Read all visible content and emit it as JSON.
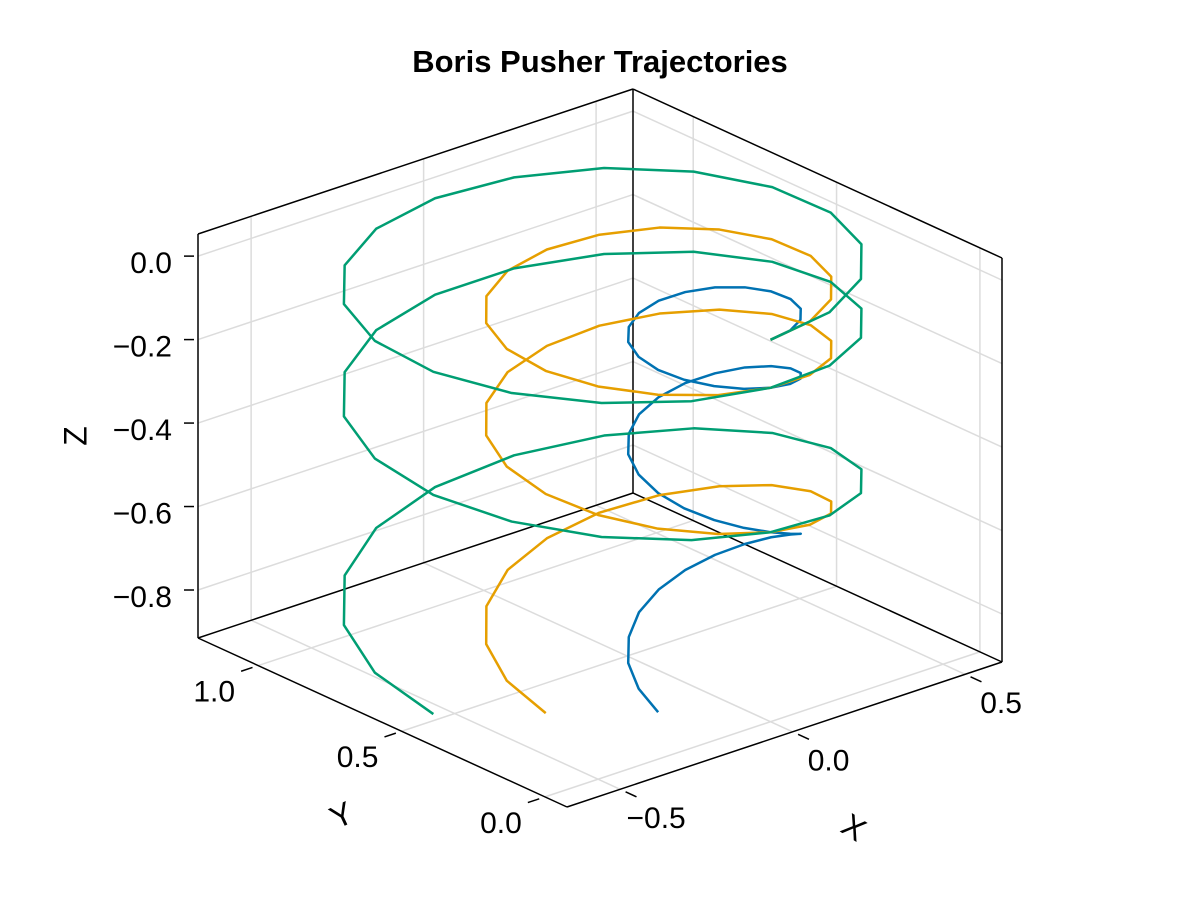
{
  "chart_data": {
    "type": "line3d",
    "title": "Boris Pusher Trajectories",
    "xlabel": "X",
    "ylabel": "Y",
    "zlabel": "Z",
    "xlim": [
      -0.654,
      0.607
    ],
    "ylim": [
      -0.077,
      1.21
    ],
    "zlim": [
      -0.915,
      0.053
    ],
    "xticks": [
      {
        "value": -0.5,
        "label": "−0.5"
      },
      {
        "value": 0,
        "label": "0.0"
      },
      {
        "value": 0.5,
        "label": "0.5"
      }
    ],
    "yticks": [
      {
        "value": 0,
        "label": "0.0"
      },
      {
        "value": 0.5,
        "label": "0.5"
      },
      {
        "value": 1,
        "label": "1.0"
      }
    ],
    "zticks": [
      {
        "value": -0.8,
        "label": "−0.8"
      },
      {
        "value": -0.6,
        "label": "−0.6"
      },
      {
        "value": -0.4,
        "label": "−0.4"
      },
      {
        "value": -0.2,
        "label": "−0.2"
      },
      {
        "value": 0,
        "label": "0.0"
      }
    ],
    "grid": true,
    "series": [
      {
        "color": "#0072b2",
        "x": [
          0,
          0.067,
          0.125,
          0.169,
          0.192,
          0.192,
          0.169,
          0.125,
          0.067,
          0,
          -0.067,
          -0.125,
          -0.169,
          -0.192,
          -0.192,
          -0.169,
          -0.125,
          -0.067,
          0,
          0.067,
          0.125,
          0.169,
          0.192,
          0.192,
          0.169,
          0.125,
          0.067,
          0,
          -0.067,
          -0.125,
          -0.169,
          -0.192,
          -0.192,
          -0.169,
          -0.125,
          -0.067,
          0,
          0.067,
          0.125,
          0.169,
          0.192,
          0.192,
          0.169,
          0.125,
          0.067,
          0,
          -0.067,
          -0.125,
          -0.169,
          -0.192,
          -0.192
        ],
        "y": [
          0,
          0.012,
          0.046,
          0.098,
          0.161,
          0.229,
          0.293,
          0.344,
          0.378,
          0.39,
          0.378,
          0.344,
          0.293,
          0.229,
          0.161,
          0.098,
          0.046,
          0.012,
          0,
          0.012,
          0.046,
          0.098,
          0.161,
          0.229,
          0.293,
          0.344,
          0.378,
          0.39,
          0.378,
          0.344,
          0.293,
          0.229,
          0.161,
          0.098,
          0.046,
          0.012,
          0,
          0.012,
          0.046,
          0.098,
          0.161,
          0.229,
          0.293,
          0.344,
          0.378,
          0.39,
          0.378,
          0.344,
          0.293,
          0.229,
          0.161
        ],
        "z": [
          0,
          0,
          -0.001,
          -0.003,
          -0.006,
          -0.009,
          -0.013,
          -0.017,
          -0.023,
          -0.029,
          -0.036,
          -0.043,
          -0.051,
          -0.06,
          -0.07,
          -0.08,
          -0.091,
          -0.103,
          -0.115,
          -0.128,
          -0.142,
          -0.157,
          -0.172,
          -0.188,
          -0.205,
          -0.223,
          -0.241,
          -0.26,
          -0.279,
          -0.299,
          -0.32,
          -0.342,
          -0.365,
          -0.388,
          -0.412,
          -0.436,
          -0.461,
          -0.487,
          -0.514,
          -0.542,
          -0.57,
          -0.598,
          -0.628,
          -0.658,
          -0.689,
          -0.721,
          -0.753,
          -0.786,
          -0.82,
          -0.855,
          -0.89
        ]
      },
      {
        "color": "#e69f00",
        "x": [
          0,
          0.133,
          0.251,
          0.338,
          0.384,
          0.384,
          0.338,
          0.251,
          0.133,
          0,
          -0.133,
          -0.251,
          -0.338,
          -0.384,
          -0.384,
          -0.338,
          -0.251,
          -0.133,
          0,
          0.133,
          0.251,
          0.338,
          0.384,
          0.384,
          0.338,
          0.251,
          0.133,
          0,
          -0.133,
          -0.251,
          -0.338,
          -0.384,
          -0.384,
          -0.338,
          -0.251,
          -0.133,
          0,
          0.133,
          0.251,
          0.338,
          0.384,
          0.384,
          0.338,
          0.251,
          0.133,
          0,
          -0.133,
          -0.251,
          -0.338,
          -0.384,
          -0.384
        ],
        "y": [
          0,
          0.023,
          0.091,
          0.195,
          0.322,
          0.458,
          0.585,
          0.689,
          0.757,
          0.78,
          0.757,
          0.689,
          0.585,
          0.458,
          0.322,
          0.195,
          0.091,
          0.023,
          0,
          0.023,
          0.091,
          0.195,
          0.322,
          0.458,
          0.585,
          0.689,
          0.757,
          0.78,
          0.757,
          0.689,
          0.585,
          0.458,
          0.322,
          0.195,
          0.091,
          0.023,
          0,
          0.023,
          0.091,
          0.195,
          0.322,
          0.458,
          0.585,
          0.689,
          0.757,
          0.78,
          0.757,
          0.689,
          0.585,
          0.458,
          0.322
        ],
        "z": [
          0,
          0,
          -0.001,
          -0.003,
          -0.006,
          -0.009,
          -0.013,
          -0.017,
          -0.023,
          -0.029,
          -0.036,
          -0.043,
          -0.051,
          -0.06,
          -0.07,
          -0.08,
          -0.091,
          -0.103,
          -0.115,
          -0.128,
          -0.142,
          -0.157,
          -0.172,
          -0.188,
          -0.205,
          -0.223,
          -0.241,
          -0.26,
          -0.279,
          -0.299,
          -0.32,
          -0.342,
          -0.365,
          -0.388,
          -0.412,
          -0.436,
          -0.461,
          -0.487,
          -0.514,
          -0.542,
          -0.57,
          -0.598,
          -0.628,
          -0.658,
          -0.689,
          -0.721,
          -0.753,
          -0.786,
          -0.82,
          -0.855,
          -0.89
        ]
      },
      {
        "color": "#009e73",
        "x": [
          0,
          0.2,
          0.376,
          0.507,
          0.576,
          0.576,
          0.507,
          0.376,
          0.2,
          0,
          -0.2,
          -0.376,
          -0.507,
          -0.576,
          -0.576,
          -0.507,
          -0.376,
          -0.2,
          0,
          0.2,
          0.376,
          0.507,
          0.576,
          0.576,
          0.507,
          0.376,
          0.2,
          0,
          -0.2,
          -0.376,
          -0.507,
          -0.576,
          -0.576,
          -0.507,
          -0.376,
          -0.2,
          0,
          0.2,
          0.376,
          0.507,
          0.576,
          0.576,
          0.507,
          0.376,
          0.2,
          0,
          -0.2,
          -0.376,
          -0.507,
          -0.576,
          -0.576
        ],
        "y": [
          0,
          0.035,
          0.137,
          0.293,
          0.483,
          0.687,
          0.878,
          1.033,
          1.135,
          1.17,
          1.135,
          1.033,
          0.878,
          0.687,
          0.483,
          0.293,
          0.137,
          0.035,
          0,
          0.035,
          0.137,
          0.293,
          0.483,
          0.687,
          0.878,
          1.033,
          1.135,
          1.17,
          1.135,
          1.033,
          0.878,
          0.687,
          0.483,
          0.293,
          0.137,
          0.035,
          0,
          0.035,
          0.137,
          0.293,
          0.483,
          0.687,
          0.878,
          1.033,
          1.135,
          1.17,
          1.135,
          1.033,
          0.878,
          0.687,
          0.483
        ],
        "z": [
          0,
          0,
          -0.001,
          -0.003,
          -0.006,
          -0.009,
          -0.013,
          -0.017,
          -0.023,
          -0.029,
          -0.036,
          -0.043,
          -0.051,
          -0.06,
          -0.07,
          -0.08,
          -0.091,
          -0.103,
          -0.115,
          -0.128,
          -0.142,
          -0.157,
          -0.172,
          -0.188,
          -0.205,
          -0.223,
          -0.241,
          -0.26,
          -0.279,
          -0.299,
          -0.32,
          -0.342,
          -0.365,
          -0.388,
          -0.412,
          -0.436,
          -0.461,
          -0.487,
          -0.514,
          -0.542,
          -0.57,
          -0.598,
          -0.628,
          -0.658,
          -0.689,
          -0.721,
          -0.753,
          -0.786,
          -0.82,
          -0.855,
          -0.89
        ]
      }
    ]
  }
}
